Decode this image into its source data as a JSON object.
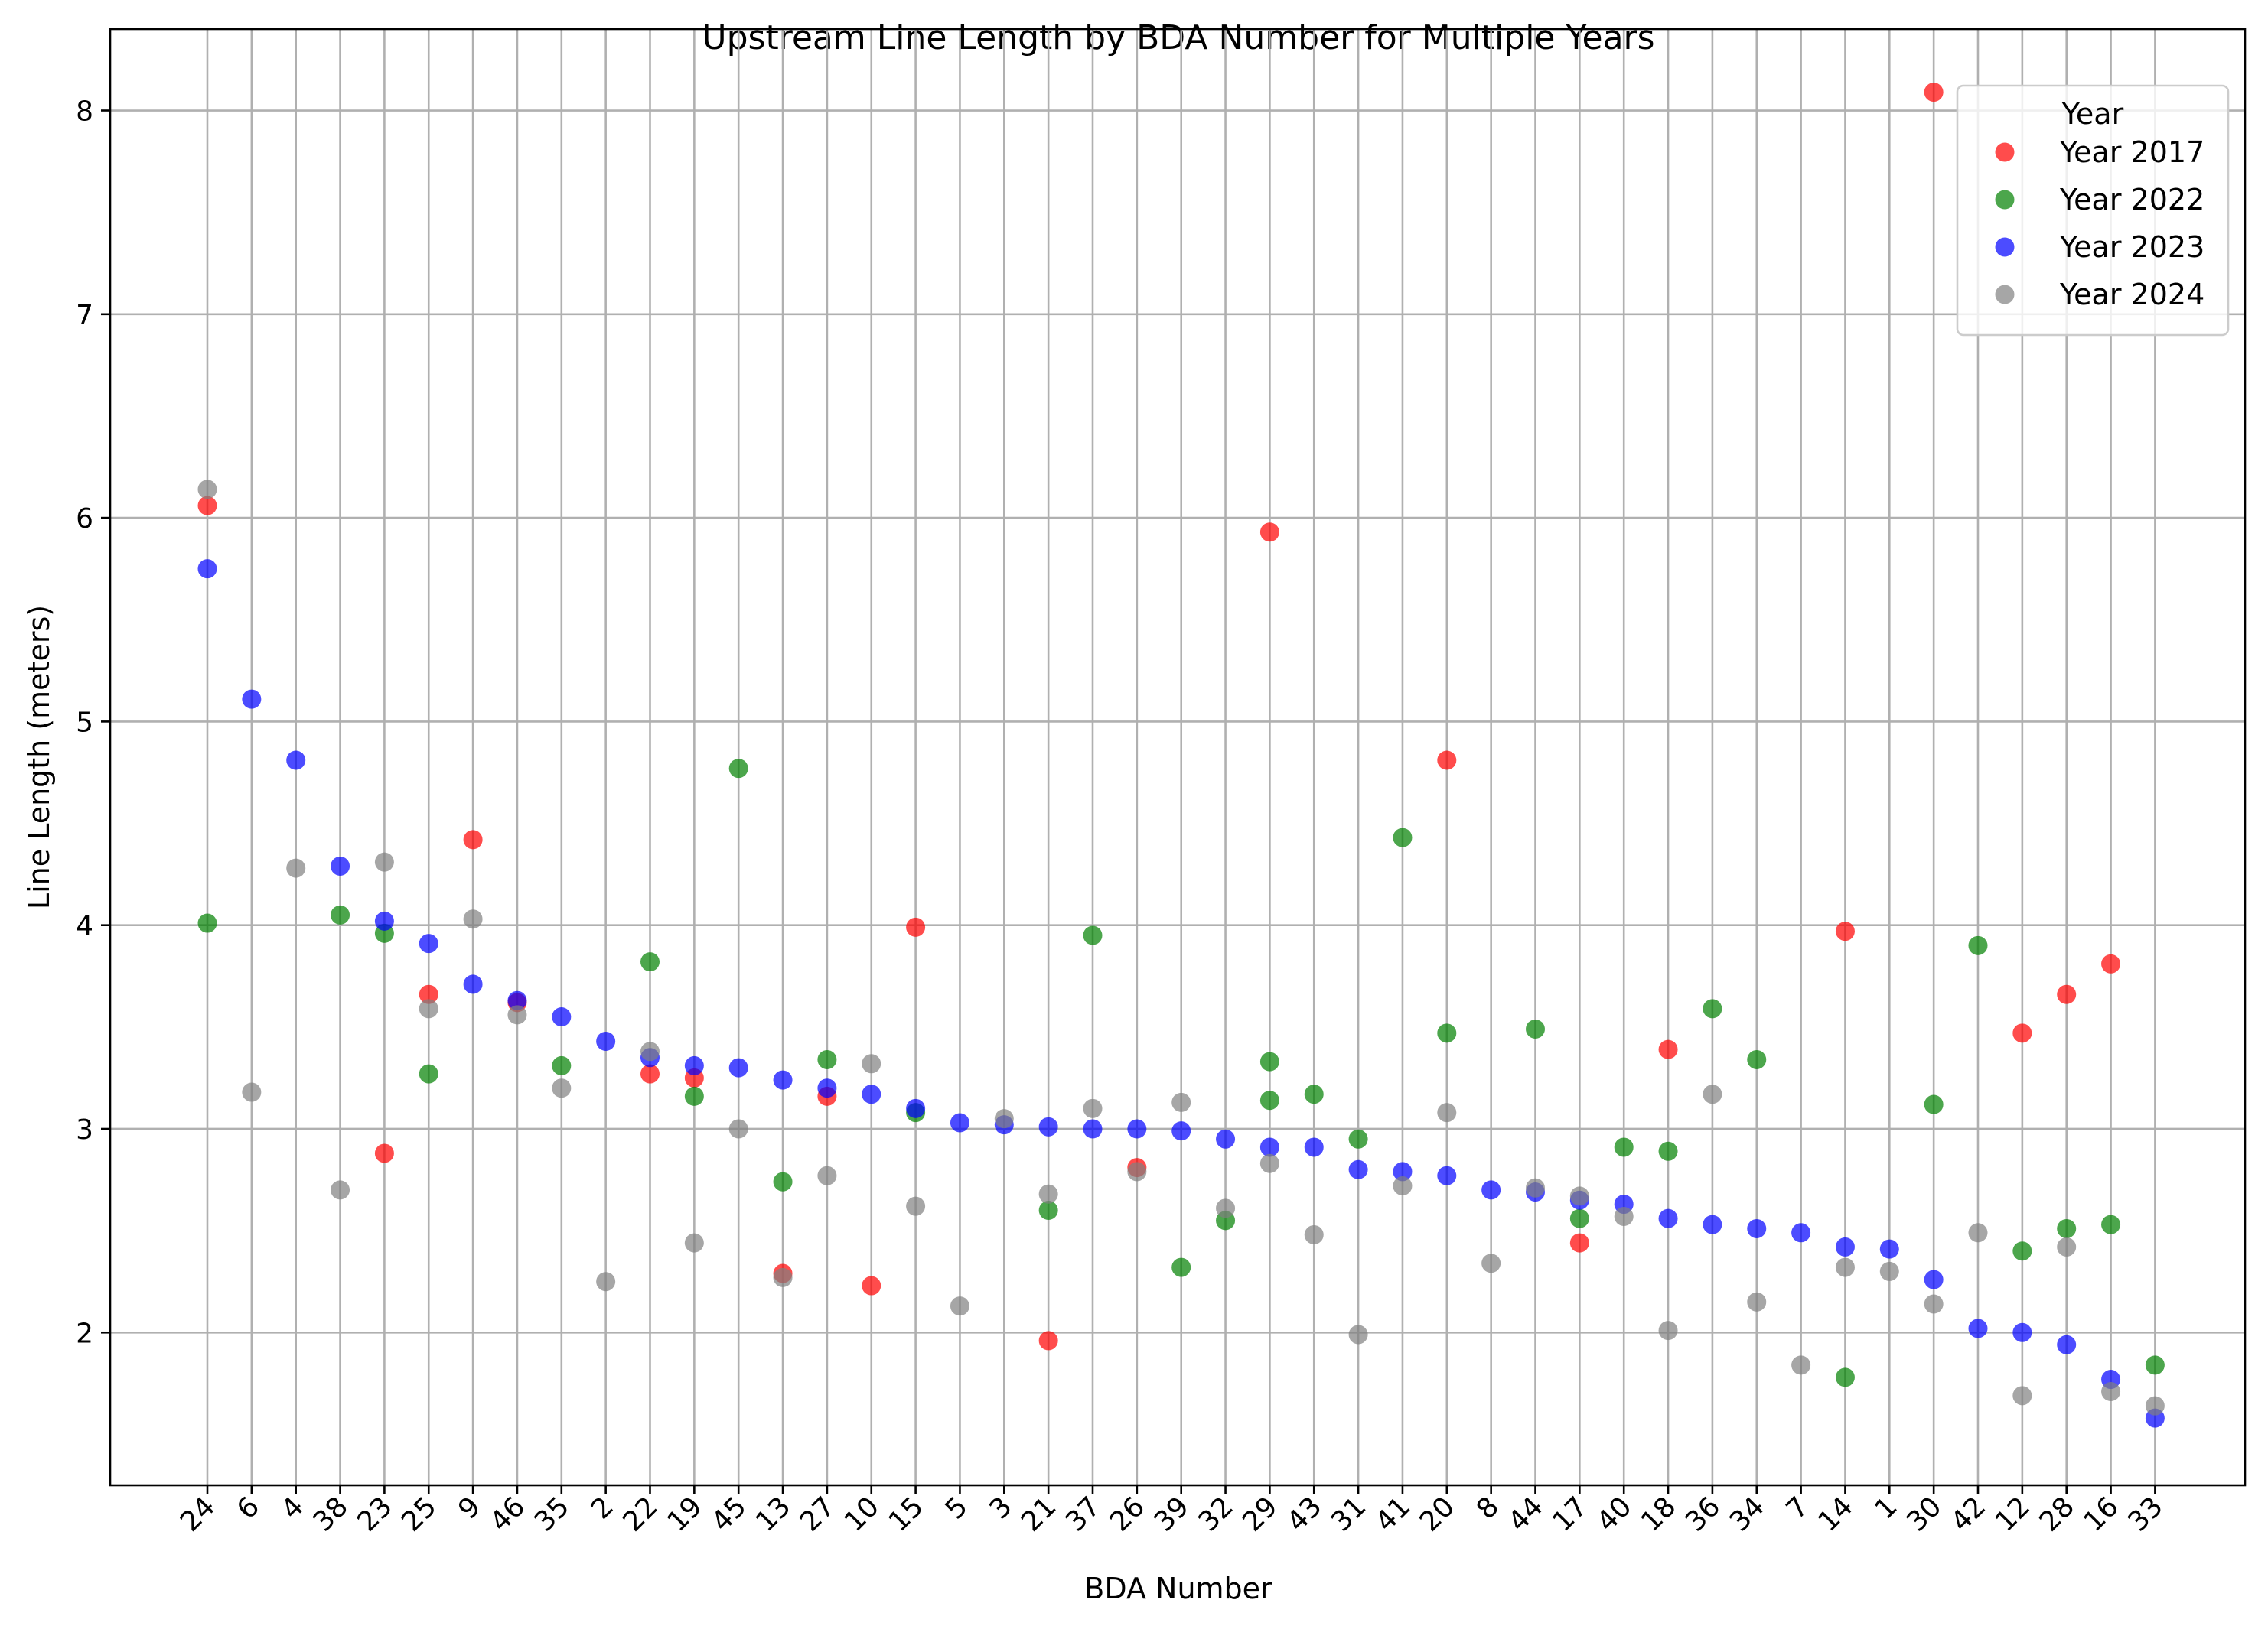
{
  "chart_data": {
    "type": "scatter",
    "title": "Upstream Line Length by BDA Number for Multiple Years",
    "xlabel": "BDA Number",
    "ylabel": "Line Length (meters)",
    "categories": [
      "24",
      "6",
      "4",
      "38",
      "23",
      "25",
      "9",
      "46",
      "35",
      "2",
      "22",
      "19",
      "45",
      "13",
      "27",
      "10",
      "15",
      "5",
      "3",
      "21",
      "37",
      "26",
      "39",
      "32",
      "29",
      "43",
      "31",
      "41",
      "20",
      "8",
      "44",
      "17",
      "40",
      "18",
      "36",
      "34",
      "7",
      "14",
      "1",
      "30",
      "42",
      "12",
      "28",
      "16",
      "33"
    ],
    "ylim": [
      1.25,
      8.4
    ],
    "yticks": [
      2,
      3,
      4,
      5,
      6,
      7,
      8
    ],
    "grid": true,
    "legend": {
      "title": "Year",
      "position": "top-right"
    },
    "series": [
      {
        "name": "Year 2017",
        "color": "#ff0000",
        "points": [
          [
            "24",
            6.06
          ],
          [
            "23",
            2.88
          ],
          [
            "25",
            3.66
          ],
          [
            "9",
            4.42
          ],
          [
            "46",
            3.62
          ],
          [
            "22",
            3.27
          ],
          [
            "19",
            3.25
          ],
          [
            "13",
            2.29
          ],
          [
            "27",
            3.16
          ],
          [
            "10",
            2.23
          ],
          [
            "15",
            3.99
          ],
          [
            "21",
            1.96
          ],
          [
            "26",
            2.81
          ],
          [
            "29",
            5.93
          ],
          [
            "20",
            4.81
          ],
          [
            "17",
            2.44
          ],
          [
            "18",
            3.39
          ],
          [
            "14",
            3.97
          ],
          [
            "30",
            8.09
          ],
          [
            "12",
            3.47
          ],
          [
            "28",
            3.66
          ],
          [
            "16",
            3.81
          ]
        ]
      },
      {
        "name": "Year 2022",
        "color": "#008000",
        "points": [
          [
            "24",
            4.01
          ],
          [
            "38",
            4.05
          ],
          [
            "23",
            3.96
          ],
          [
            "25",
            3.27
          ],
          [
            "35",
            3.31
          ],
          [
            "22",
            3.82
          ],
          [
            "19",
            3.16
          ],
          [
            "45",
            4.77
          ],
          [
            "13",
            2.74
          ],
          [
            "27",
            3.34
          ],
          [
            "15",
            3.08
          ],
          [
            "21",
            2.6
          ],
          [
            "37",
            3.95
          ],
          [
            "39",
            2.32
          ],
          [
            "32",
            2.55
          ],
          [
            "29",
            3.33
          ],
          [
            "29",
            3.14
          ],
          [
            "43",
            3.17
          ],
          [
            "31",
            2.95
          ],
          [
            "41",
            4.43
          ],
          [
            "20",
            3.47
          ],
          [
            "44",
            3.49
          ],
          [
            "17",
            2.56
          ],
          [
            "40",
            2.91
          ],
          [
            "18",
            2.89
          ],
          [
            "36",
            3.59
          ],
          [
            "34",
            3.34
          ],
          [
            "14",
            1.78
          ],
          [
            "30",
            3.12
          ],
          [
            "42",
            3.9
          ],
          [
            "12",
            2.4
          ],
          [
            "28",
            2.51
          ],
          [
            "16",
            2.53
          ],
          [
            "33",
            1.84
          ]
        ]
      },
      {
        "name": "Year 2023",
        "color": "#0000ff",
        "points": [
          [
            "24",
            5.75
          ],
          [
            "6",
            5.11
          ],
          [
            "4",
            4.81
          ],
          [
            "38",
            4.29
          ],
          [
            "23",
            4.02
          ],
          [
            "25",
            3.91
          ],
          [
            "9",
            3.71
          ],
          [
            "46",
            3.63
          ],
          [
            "35",
            3.55
          ],
          [
            "2",
            3.43
          ],
          [
            "22",
            3.35
          ],
          [
            "19",
            3.31
          ],
          [
            "45",
            3.3
          ],
          [
            "13",
            3.24
          ],
          [
            "27",
            3.2
          ],
          [
            "10",
            3.17
          ],
          [
            "15",
            3.1
          ],
          [
            "5",
            3.03
          ],
          [
            "3",
            3.02
          ],
          [
            "21",
            3.01
          ],
          [
            "37",
            3.0
          ],
          [
            "26",
            3.0
          ],
          [
            "39",
            2.99
          ],
          [
            "32",
            2.95
          ],
          [
            "29",
            2.91
          ],
          [
            "43",
            2.91
          ],
          [
            "31",
            2.8
          ],
          [
            "41",
            2.79
          ],
          [
            "20",
            2.77
          ],
          [
            "8",
            2.7
          ],
          [
            "44",
            2.69
          ],
          [
            "17",
            2.65
          ],
          [
            "40",
            2.63
          ],
          [
            "18",
            2.56
          ],
          [
            "36",
            2.53
          ],
          [
            "34",
            2.51
          ],
          [
            "7",
            2.49
          ],
          [
            "14",
            2.42
          ],
          [
            "1",
            2.41
          ],
          [
            "30",
            2.26
          ],
          [
            "42",
            2.02
          ],
          [
            "12",
            2.0
          ],
          [
            "28",
            1.94
          ],
          [
            "16",
            1.77
          ],
          [
            "33",
            1.58
          ]
        ]
      },
      {
        "name": "Year 2024",
        "color": "#808080",
        "points": [
          [
            "24",
            6.14
          ],
          [
            "6",
            3.18
          ],
          [
            "4",
            4.28
          ],
          [
            "38",
            2.7
          ],
          [
            "23",
            4.31
          ],
          [
            "25",
            3.59
          ],
          [
            "9",
            4.03
          ],
          [
            "46",
            3.56
          ],
          [
            "35",
            3.2
          ],
          [
            "2",
            2.25
          ],
          [
            "22",
            3.38
          ],
          [
            "19",
            2.44
          ],
          [
            "45",
            3.0
          ],
          [
            "13",
            2.27
          ],
          [
            "27",
            2.77
          ],
          [
            "10",
            3.32
          ],
          [
            "15",
            2.62
          ],
          [
            "5",
            2.13
          ],
          [
            "3",
            3.05
          ],
          [
            "21",
            2.68
          ],
          [
            "37",
            3.1
          ],
          [
            "26",
            2.79
          ],
          [
            "39",
            3.13
          ],
          [
            "32",
            2.61
          ],
          [
            "29",
            2.83
          ],
          [
            "43",
            2.48
          ],
          [
            "31",
            1.99
          ],
          [
            "41",
            2.72
          ],
          [
            "20",
            3.08
          ],
          [
            "8",
            2.34
          ],
          [
            "44",
            2.71
          ],
          [
            "17",
            2.67
          ],
          [
            "40",
            2.57
          ],
          [
            "18",
            2.01
          ],
          [
            "36",
            3.17
          ],
          [
            "34",
            2.15
          ],
          [
            "7",
            1.84
          ],
          [
            "14",
            2.32
          ],
          [
            "1",
            2.3
          ],
          [
            "30",
            2.14
          ],
          [
            "42",
            2.49
          ],
          [
            "12",
            1.69
          ],
          [
            "28",
            2.42
          ],
          [
            "16",
            1.71
          ],
          [
            "33",
            1.64
          ]
        ]
      }
    ]
  }
}
